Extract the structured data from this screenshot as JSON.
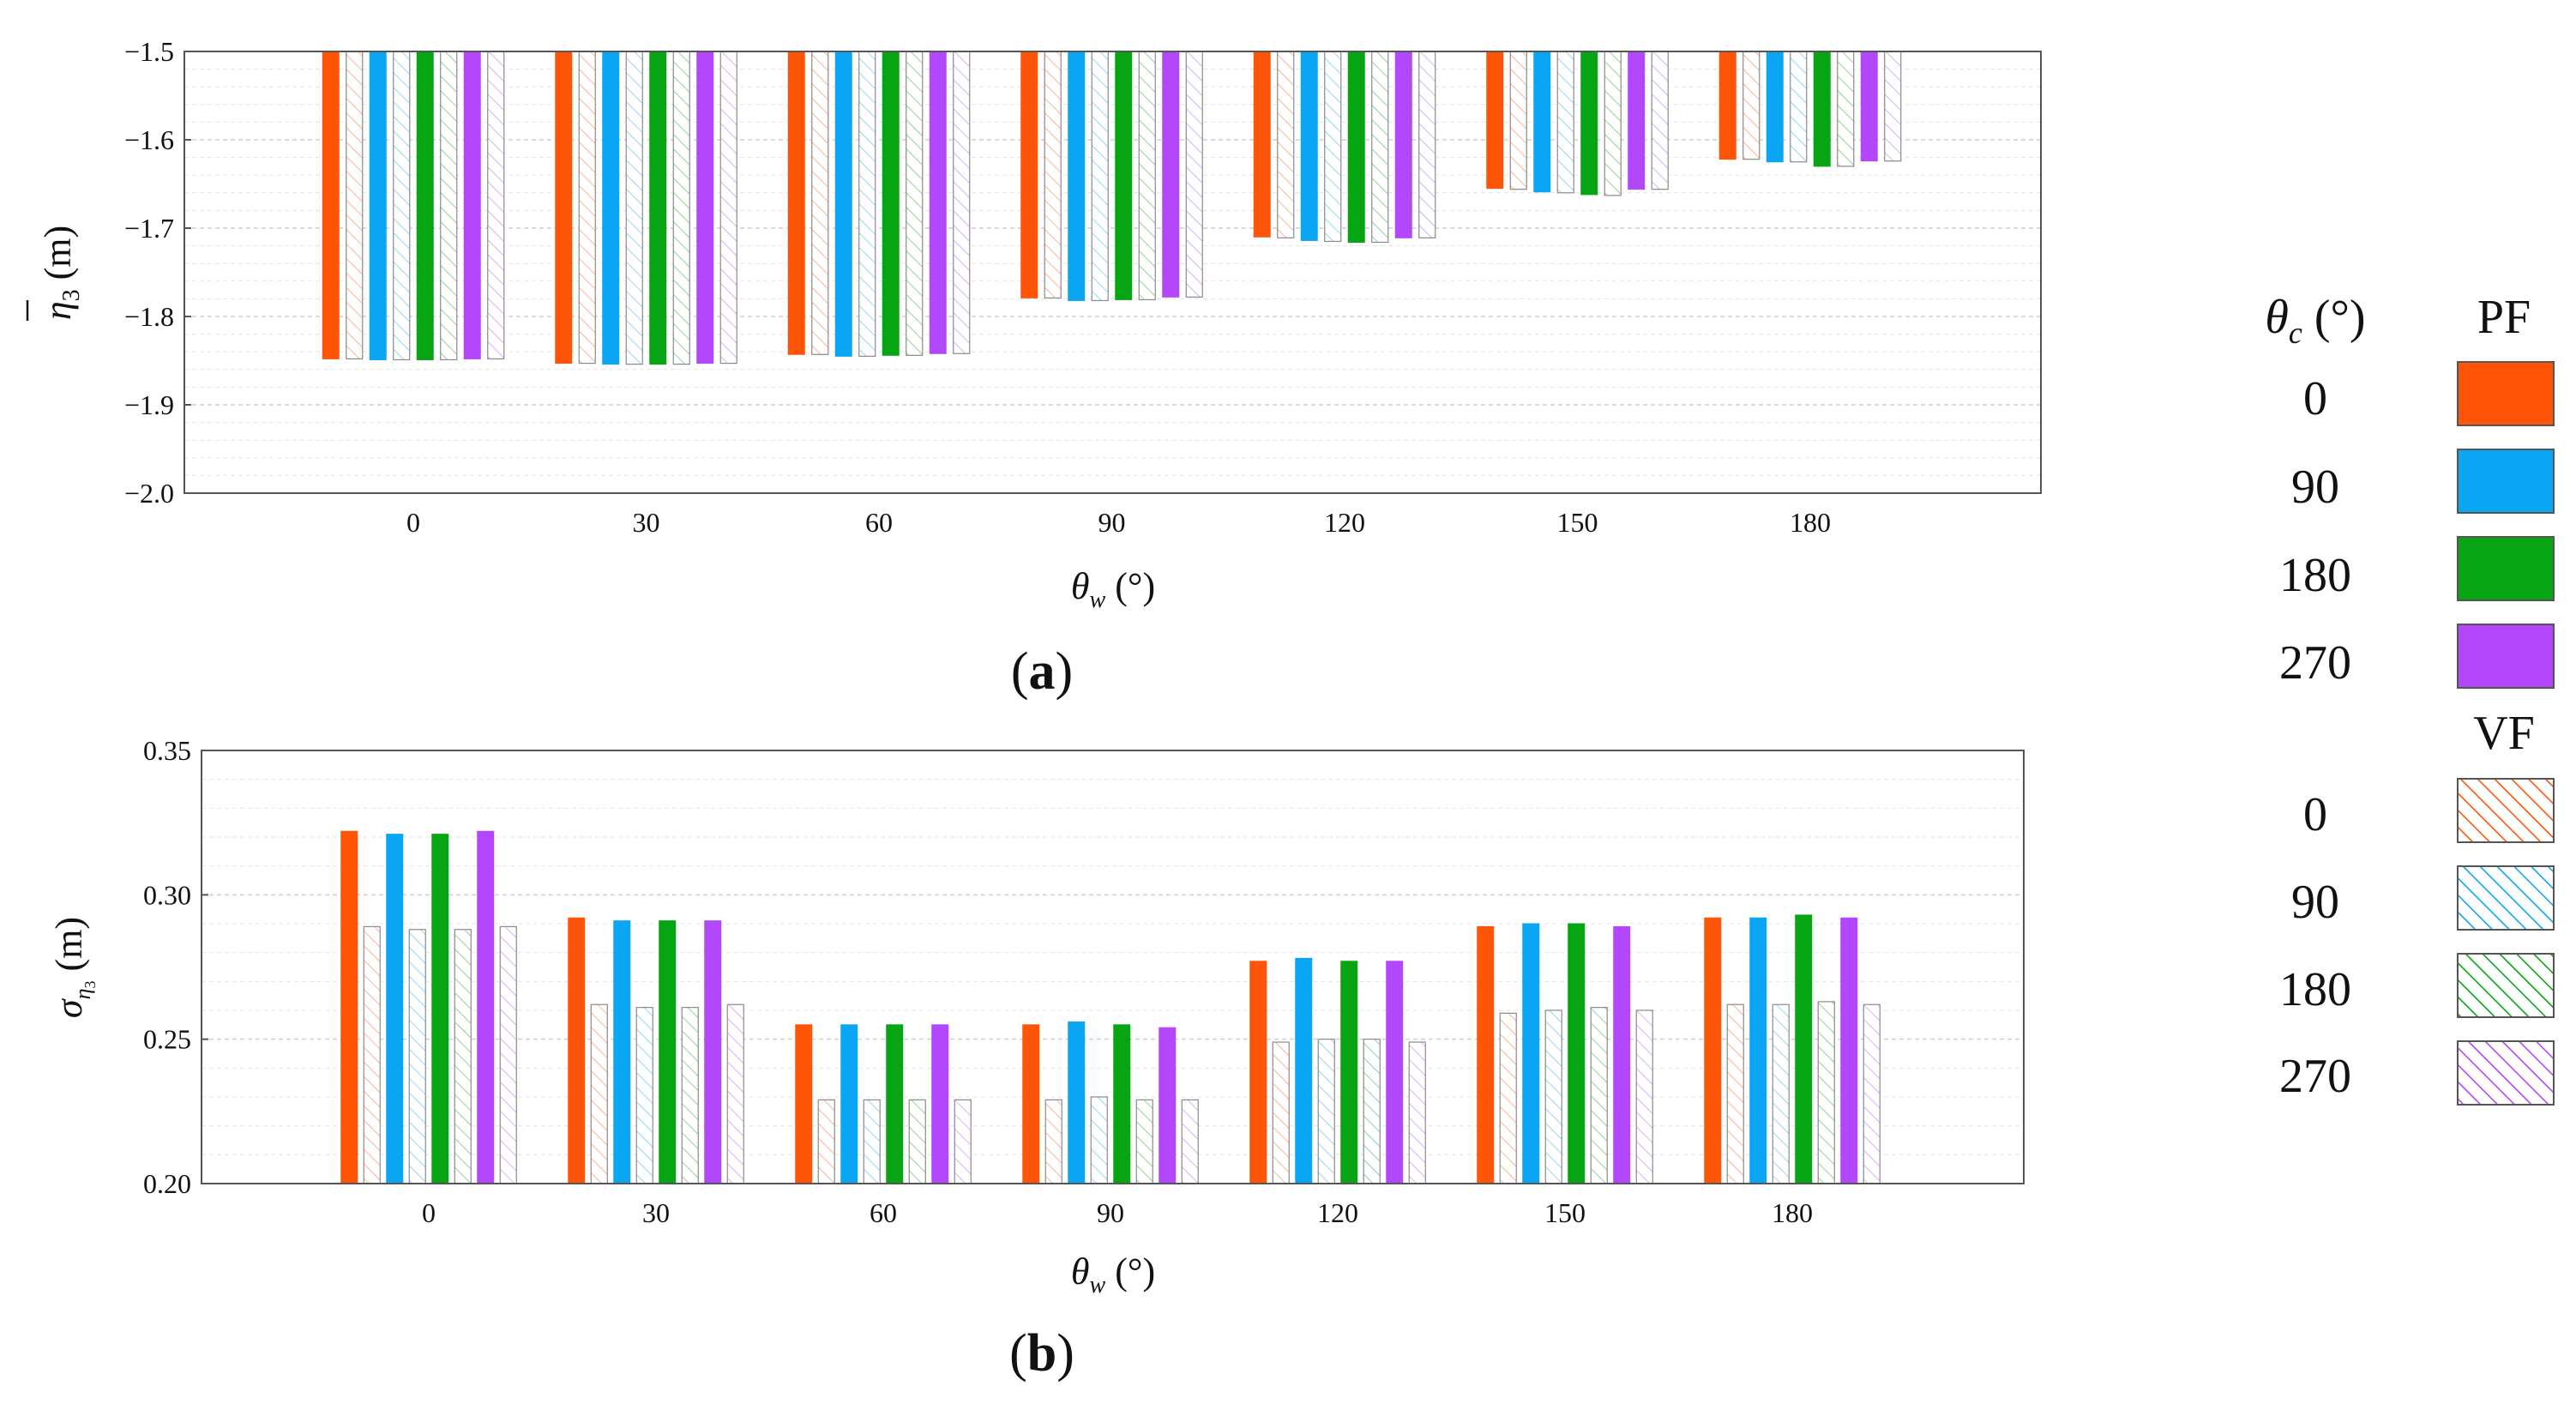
{
  "colors": {
    "0": "#ff5508",
    "90": "#0aa6f3",
    "180": "#07a513",
    "270": "#b347fb"
  },
  "legend": {
    "title_symbol": "θ",
    "title_sub": "c",
    "title_unit": " (°)",
    "pf_label": "PF",
    "vf_label": "VF",
    "angles": [
      "0",
      "90",
      "180",
      "270"
    ]
  },
  "chart_data": [
    {
      "panel": "(a)",
      "panel_open": "(",
      "panel_letter": "a",
      "panel_close": ")",
      "type": "bar",
      "baseline": "top",
      "categories": [
        "0",
        "30",
        "60",
        "90",
        "120",
        "150",
        "180"
      ],
      "xlabel_symbol": "θ",
      "xlabel_sub": "w",
      "xlabel_unit": " (°)",
      "ylabel_symbol": "η",
      "ylabel_sub": "3",
      "ylabel_unit": " (m)",
      "ylim": [
        -2.0,
        -1.5
      ],
      "yticks": [
        "−1.5",
        "−1.6",
        "−1.7",
        "−1.8",
        "−1.9",
        "−2.0"
      ],
      "ytick_values": [
        -1.5,
        -1.6,
        -1.7,
        -1.8,
        -1.9,
        -2.0
      ],
      "minor_step": 0.02,
      "series": [
        {
          "name": "PF 0",
          "group": "PF",
          "angle": "0",
          "values": [
            -1.848,
            -1.853,
            -1.843,
            -1.779,
            -1.71,
            -1.655,
            -1.622
          ]
        },
        {
          "name": "VF 0",
          "group": "VF",
          "angle": "0",
          "values": [
            -1.848,
            -1.853,
            -1.843,
            -1.779,
            -1.711,
            -1.656,
            -1.622
          ]
        },
        {
          "name": "PF 90",
          "group": "PF",
          "angle": "90",
          "values": [
            -1.849,
            -1.854,
            -1.845,
            -1.782,
            -1.714,
            -1.659,
            -1.625
          ]
        },
        {
          "name": "VF 90",
          "group": "VF",
          "angle": "90",
          "values": [
            -1.849,
            -1.854,
            -1.845,
            -1.782,
            -1.715,
            -1.66,
            -1.625
          ]
        },
        {
          "name": "PF 180",
          "group": "PF",
          "angle": "180",
          "values": [
            -1.849,
            -1.854,
            -1.844,
            -1.781,
            -1.716,
            -1.662,
            -1.63
          ]
        },
        {
          "name": "VF 180",
          "group": "VF",
          "angle": "180",
          "values": [
            -1.849,
            -1.854,
            -1.844,
            -1.781,
            -1.716,
            -1.663,
            -1.63
          ]
        },
        {
          "name": "PF 270",
          "group": "PF",
          "angle": "270",
          "values": [
            -1.848,
            -1.853,
            -1.842,
            -1.778,
            -1.711,
            -1.656,
            -1.624
          ]
        },
        {
          "name": "VF 270",
          "group": "VF",
          "angle": "270",
          "values": [
            -1.848,
            -1.853,
            -1.842,
            -1.778,
            -1.711,
            -1.656,
            -1.624
          ]
        }
      ]
    },
    {
      "panel": "(b)",
      "panel_open": "(",
      "panel_letter": "b",
      "panel_close": ")",
      "type": "bar",
      "baseline": "bottom",
      "categories": [
        "0",
        "30",
        "60",
        "90",
        "120",
        "150",
        "180"
      ],
      "xlabel_symbol": "θ",
      "xlabel_sub": "w",
      "xlabel_unit": " (°)",
      "ylabel_symbol": "σ",
      "ylabel_sub": "η",
      "ylabel_subsub": "3",
      "ylabel_unit": " (m)",
      "ylim": [
        0.2,
        0.35
      ],
      "yticks": [
        "0.35",
        "0.30",
        "0.25",
        "0.20"
      ],
      "ytick_values": [
        0.35,
        0.3,
        0.25,
        0.2
      ],
      "minor_step": 0.01,
      "series": [
        {
          "name": "PF 0",
          "group": "PF",
          "angle": "0",
          "values": [
            0.322,
            0.292,
            0.255,
            0.255,
            0.277,
            0.289,
            0.292
          ]
        },
        {
          "name": "VF 0",
          "group": "VF",
          "angle": "0",
          "values": [
            0.289,
            0.262,
            0.229,
            0.229,
            0.249,
            0.259,
            0.262
          ]
        },
        {
          "name": "PF 90",
          "group": "PF",
          "angle": "90",
          "values": [
            0.321,
            0.291,
            0.255,
            0.256,
            0.278,
            0.29,
            0.292
          ]
        },
        {
          "name": "VF 90",
          "group": "VF",
          "angle": "90",
          "values": [
            0.288,
            0.261,
            0.229,
            0.23,
            0.25,
            0.26,
            0.262
          ]
        },
        {
          "name": "PF 180",
          "group": "PF",
          "angle": "180",
          "values": [
            0.321,
            0.291,
            0.255,
            0.255,
            0.277,
            0.29,
            0.293
          ]
        },
        {
          "name": "VF 180",
          "group": "VF",
          "angle": "180",
          "values": [
            0.288,
            0.261,
            0.229,
            0.229,
            0.25,
            0.261,
            0.263
          ]
        },
        {
          "name": "PF 270",
          "group": "PF",
          "angle": "270",
          "values": [
            0.322,
            0.291,
            0.255,
            0.254,
            0.277,
            0.289,
            0.292
          ]
        },
        {
          "name": "VF 270",
          "group": "VF",
          "angle": "270",
          "values": [
            0.289,
            0.262,
            0.229,
            0.229,
            0.249,
            0.26,
            0.262
          ]
        }
      ]
    }
  ]
}
